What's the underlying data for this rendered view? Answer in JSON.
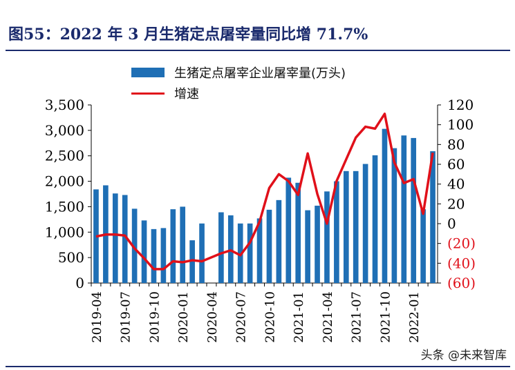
{
  "header": {
    "title": "图55：2022 年 3 月生猪定点屠宰量同比增 71.7%"
  },
  "legend": {
    "bar_label": "生猪定点屠宰企业屠宰量(万头)",
    "line_label": "增速"
  },
  "watermark": "头条 @未来智库",
  "colors": {
    "bar": "#1f6fb5",
    "line": "#e0101a",
    "negative_tick": "#e0101a",
    "title": "#1a2a6c"
  },
  "chart_data": {
    "type": "bar+line",
    "title": "图55：2022 年 3 月生猪定点屠宰量同比增 71.7%",
    "categories": [
      "2019-04",
      "2019-05",
      "2019-06",
      "2019-07",
      "2019-08",
      "2019-09",
      "2019-10",
      "2019-11",
      "2019-12",
      "2020-01",
      "2020-02",
      "2020-03",
      "2020-04",
      "2020-05",
      "2020-06",
      "2020-07",
      "2020-08",
      "2020-09",
      "2020-10",
      "2020-11",
      "2020-12",
      "2021-01",
      "2021-02",
      "2021-03",
      "2021-04",
      "2021-05",
      "2021-06",
      "2021-07",
      "2021-08",
      "2021-09",
      "2021-10",
      "2021-11",
      "2021-12",
      "2022-01",
      "2022-02",
      "2022-03"
    ],
    "x_tick_labels": [
      "2019-04",
      "2019-07",
      "2019-10",
      "2020-01",
      "2020-04",
      "2020-07",
      "2020-10",
      "2021-01",
      "2021-04",
      "2021-07",
      "2021-10",
      "2022-01"
    ],
    "series": [
      {
        "name": "生猪定点屠宰企业屠宰量(万头)",
        "type": "bar",
        "axis": "left",
        "values": [
          1840,
          1920,
          1760,
          1730,
          1460,
          1230,
          1060,
          1080,
          1450,
          1500,
          840,
          1170,
          null,
          1390,
          1330,
          1170,
          1170,
          1270,
          1440,
          1630,
          2070,
          1970,
          1430,
          1520,
          1800,
          2000,
          2200,
          2200,
          2340,
          2510,
          3030,
          2650,
          2900,
          2850,
          1450,
          2590
        ]
      },
      {
        "name": "增速",
        "type": "line",
        "axis": "right",
        "values": [
          -13,
          -11,
          -11,
          -12,
          -25,
          -35,
          -46,
          -46,
          -38,
          -39,
          -37,
          -38,
          -34,
          -30,
          -27,
          -32,
          -19,
          2,
          36,
          50,
          43,
          29,
          71,
          30,
          0,
          43,
          65,
          87,
          98,
          96,
          111,
          62,
          41,
          45,
          10,
          71.7
        ]
      }
    ],
    "left_axis": {
      "min": 0,
      "max": 3500,
      "ticks": [
        0,
        500,
        1000,
        1500,
        2000,
        2500,
        3000,
        3500
      ],
      "tick_labels": [
        "0",
        "500",
        "1,000",
        "1,500",
        "2,000",
        "2,500",
        "3,000",
        "3,500"
      ]
    },
    "right_axis": {
      "min": -60,
      "max": 120,
      "ticks": [
        -60,
        -40,
        -20,
        0,
        20,
        40,
        60,
        80,
        100,
        120
      ],
      "tick_labels": [
        "(60)",
        "(40)",
        "(20)",
        "0",
        "20",
        "40",
        "60",
        "80",
        "100",
        "120"
      ]
    },
    "grid": false,
    "legend_position": "top"
  }
}
